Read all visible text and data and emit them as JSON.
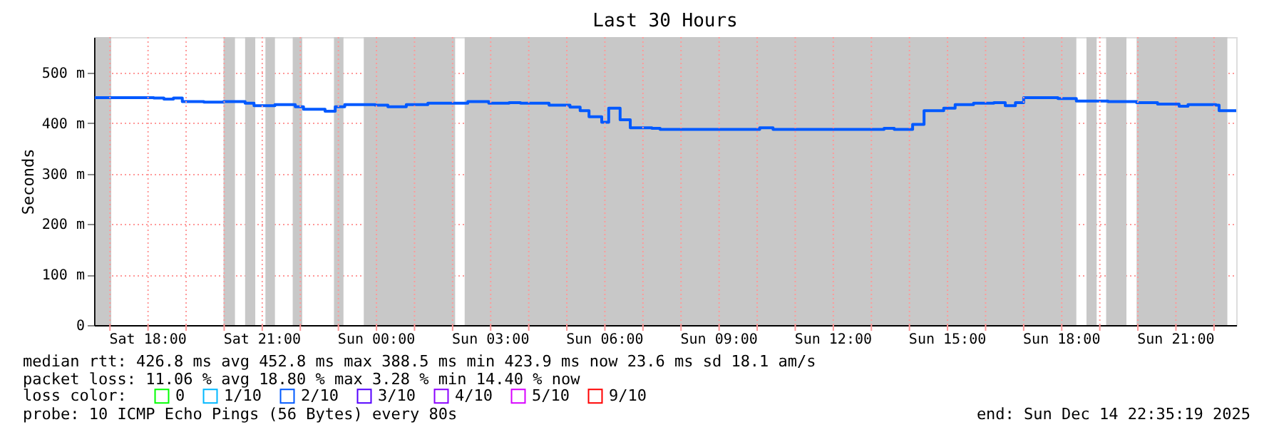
{
  "chart_data": {
    "type": "step",
    "title": "Last 30 Hours",
    "ylabel": "Seconds",
    "x": [
      "2025-12-13T16:36",
      "2025-12-13T18:09",
      "2025-12-13T18:25",
      "2025-12-13T18:40",
      "2025-12-13T18:54",
      "2025-12-13T19:28",
      "2025-12-13T19:59",
      "2025-12-13T20:33",
      "2025-12-13T20:47",
      "2025-12-13T21:20",
      "2025-12-13T21:52",
      "2025-12-13T22:05",
      "2025-12-13T22:39",
      "2025-12-13T22:55",
      "2025-12-13T23:10",
      "2025-12-13T23:58",
      "2025-12-14T00:18",
      "2025-12-14T00:47",
      "2025-12-14T01:21",
      "2025-12-14T02:24",
      "2025-12-14T02:57",
      "2025-12-14T03:29",
      "2025-12-14T03:47",
      "2025-12-14T04:32",
      "2025-12-14T05:05",
      "2025-12-14T05:21",
      "2025-12-14T05:35",
      "2025-12-14T05:55",
      "2025-12-14T06:06",
      "2025-12-14T06:24",
      "2025-12-14T06:40",
      "2025-12-14T07:14",
      "2025-12-14T07:27",
      "2025-12-14T10:04",
      "2025-12-14T10:25",
      "2025-12-14T13:20",
      "2025-12-14T13:36",
      "2025-12-14T14:05",
      "2025-12-14T14:23",
      "2025-12-14T14:54",
      "2025-12-14T15:12",
      "2025-12-14T15:41",
      "2025-12-14T16:13",
      "2025-12-14T16:31",
      "2025-12-14T16:47",
      "2025-12-14T17:00",
      "2025-12-14T17:54",
      "2025-12-14T18:23",
      "2025-12-14T19:13",
      "2025-12-14T19:58",
      "2025-12-14T20:31",
      "2025-12-14T21:05",
      "2025-12-14T21:19",
      "2025-12-14T22:03",
      "2025-12-14T22:08",
      "2025-12-14T22:19",
      "2025-12-14T22:35"
    ],
    "series": [
      {
        "name": "0",
        "color": "#00ff00",
        "values": [
          null,
          null,
          null,
          null,
          null,
          null,
          null,
          null,
          null,
          null,
          null,
          null,
          null,
          null,
          null,
          null,
          null,
          null,
          null,
          null,
          null,
          null,
          null,
          null,
          null,
          null,
          null,
          null,
          null,
          null,
          null,
          null,
          null,
          null,
          null,
          null,
          null,
          null,
          null,
          null,
          null,
          null,
          null,
          null,
          null,
          null,
          null,
          null,
          null,
          null,
          null,
          null,
          null,
          null,
          null,
          null,
          null
        ]
      },
      {
        "name": "1/10",
        "color": "#00b8ff",
        "values": [
          null,
          null,
          null,
          null,
          null,
          null,
          null,
          null,
          null,
          null,
          null,
          null,
          null,
          null,
          null,
          null,
          null,
          null,
          null,
          null,
          null,
          null,
          null,
          null,
          null,
          null,
          null,
          null,
          null,
          null,
          null,
          null,
          null,
          null,
          null,
          null,
          null,
          null,
          null,
          null,
          null,
          null,
          null,
          null,
          null,
          null,
          null,
          null,
          null,
          null,
          null,
          null,
          null,
          null,
          null,
          null,
          null
        ]
      },
      {
        "name": "2/10",
        "color": "#0059ff",
        "values": [
          451,
          450,
          448,
          450,
          443,
          442,
          443,
          440,
          435,
          437,
          433,
          428,
          424,
          433,
          437,
          436,
          433,
          437,
          440,
          443,
          440,
          441,
          440,
          436,
          432,
          425,
          413,
          402,
          430,
          407,
          391,
          390,
          388,
          391,
          388,
          390,
          388,
          398,
          425,
          430,
          437,
          440,
          441,
          435,
          441,
          451,
          449,
          444,
          443,
          441,
          438,
          434,
          437,
          436,
          425,
          425,
          425
        ]
      },
      {
        "name": "3/10",
        "color": "#5500ff",
        "values": [
          null,
          null,
          null,
          null,
          null,
          null,
          null,
          null,
          null,
          null,
          null,
          null,
          null,
          null,
          null,
          null,
          null,
          null,
          null,
          null,
          null,
          null,
          null,
          null,
          null,
          null,
          null,
          null,
          null,
          null,
          null,
          null,
          null,
          null,
          null,
          null,
          null,
          null,
          null,
          null,
          null,
          null,
          null,
          null,
          null,
          null,
          null,
          null,
          null,
          null,
          null,
          null,
          null,
          null,
          null,
          null,
          null
        ]
      },
      {
        "name": "4/10",
        "color": "#8a00ff",
        "values": [
          null,
          null,
          null,
          null,
          null,
          null,
          null,
          null,
          null,
          null,
          null,
          null,
          null,
          null,
          null,
          null,
          null,
          null,
          null,
          null,
          null,
          null,
          null,
          null,
          null,
          null,
          null,
          null,
          null,
          null,
          null,
          null,
          null,
          null,
          null,
          null,
          null,
          null,
          null,
          null,
          null,
          null,
          null,
          null,
          null,
          null,
          null,
          null,
          null,
          null,
          null,
          null,
          null,
          null,
          null,
          null,
          null
        ]
      },
      {
        "name": "5/10",
        "color": "#d800ff",
        "values": [
          null,
          null,
          null,
          null,
          null,
          null,
          null,
          null,
          null,
          null,
          null,
          null,
          null,
          null,
          null,
          null,
          null,
          null,
          null,
          null,
          null,
          null,
          null,
          null,
          null,
          null,
          null,
          null,
          null,
          null,
          null,
          null,
          null,
          null,
          null,
          null,
          null,
          null,
          null,
          null,
          null,
          null,
          null,
          null,
          null,
          null,
          null,
          null,
          null,
          null,
          null,
          null,
          null,
          null,
          null,
          null,
          null
        ]
      },
      {
        "name": "9/10",
        "color": "#ff0000",
        "values": [
          null,
          null,
          null,
          null,
          null,
          null,
          null,
          null,
          null,
          null,
          null,
          null,
          null,
          null,
          null,
          null,
          null,
          null,
          null,
          null,
          null,
          null,
          null,
          null,
          null,
          null,
          null,
          null,
          null,
          null,
          null,
          null,
          null,
          null,
          null,
          null,
          null,
          null,
          null,
          null,
          null,
          null,
          null,
          null,
          null,
          null,
          null,
          null,
          null,
          null,
          null,
          null,
          null,
          null,
          null,
          null,
          null
        ]
      }
    ],
    "legend": "bottom",
    "legend_title": "loss color:",
    "xlim": [
      "2025-12-13T16:35",
      "2025-12-14T22:35"
    ],
    "xticks": [
      {
        "value": "2025-12-13T17:00",
        "label": null
      },
      {
        "value": "2025-12-13T18:00",
        "label": "Sat 18:00"
      },
      {
        "value": "2025-12-13T19:00",
        "label": null
      },
      {
        "value": "2025-12-13T20:00",
        "label": null
      },
      {
        "value": "2025-12-13T21:00",
        "label": "Sat 21:00"
      },
      {
        "value": "2025-12-13T22:00",
        "label": null
      },
      {
        "value": "2025-12-13T23:00",
        "label": null
      },
      {
        "value": "2025-12-14T00:00",
        "label": "Sun 00:00"
      },
      {
        "value": "2025-12-14T01:00",
        "label": null
      },
      {
        "value": "2025-12-14T02:00",
        "label": null
      },
      {
        "value": "2025-12-14T03:00",
        "label": "Sun 03:00"
      },
      {
        "value": "2025-12-14T04:00",
        "label": null
      },
      {
        "value": "2025-12-14T05:00",
        "label": null
      },
      {
        "value": "2025-12-14T06:00",
        "label": "Sun 06:00"
      },
      {
        "value": "2025-12-14T07:00",
        "label": null
      },
      {
        "value": "2025-12-14T08:00",
        "label": null
      },
      {
        "value": "2025-12-14T09:00",
        "label": "Sun 09:00"
      },
      {
        "value": "2025-12-14T10:00",
        "label": null
      },
      {
        "value": "2025-12-14T11:00",
        "label": null
      },
      {
        "value": "2025-12-14T12:00",
        "label": "Sun 12:00"
      },
      {
        "value": "2025-12-14T13:00",
        "label": null
      },
      {
        "value": "2025-12-14T14:00",
        "label": null
      },
      {
        "value": "2025-12-14T15:00",
        "label": "Sun 15:00"
      },
      {
        "value": "2025-12-14T16:00",
        "label": null
      },
      {
        "value": "2025-12-14T17:00",
        "label": null
      },
      {
        "value": "2025-12-14T18:00",
        "label": "Sun 18:00"
      },
      {
        "value": "2025-12-14T19:00",
        "label": null
      },
      {
        "value": "2025-12-14T20:00",
        "label": null
      },
      {
        "value": "2025-12-14T21:00",
        "label": "Sun 21:00"
      },
      {
        "value": "2025-12-14T22:00",
        "label": null
      }
    ],
    "ylim": [
      0,
      571
    ],
    "yticks": [
      0,
      {
        "value": 100,
        "label": "100 m"
      },
      {
        "value": 200,
        "label": "200 m"
      },
      {
        "value": 300,
        "label": "300 m"
      },
      {
        "value": 400,
        "label": "400 m"
      },
      {
        "value": 500,
        "label": "500 m"
      }
    ],
    "grid": true,
    "line_style": "solid",
    "marker": "none",
    "bands": [
      {
        "axis": "x",
        "from": "2025-12-13T16:37",
        "to": "2025-12-13T17:02",
        "color": "#c8c8c8"
      },
      {
        "axis": "x",
        "from": "2025-12-13T19:59",
        "to": "2025-12-13T20:17",
        "color": "#c8c8c8"
      },
      {
        "axis": "x",
        "from": "2025-12-13T20:33",
        "to": "2025-12-13T20:49",
        "color": "#c8c8c8"
      },
      {
        "axis": "x",
        "from": "2025-12-13T21:05",
        "to": "2025-12-13T21:20",
        "color": "#c8c8c8"
      },
      {
        "axis": "x",
        "from": "2025-12-13T21:48",
        "to": "2025-12-13T22:03",
        "color": "#c8c8c8"
      },
      {
        "axis": "x",
        "from": "2025-12-13T22:53",
        "to": "2025-12-13T23:08",
        "color": "#c8c8c8"
      },
      {
        "axis": "x",
        "from": "2025-12-13T23:40",
        "to": "2025-12-14T02:04",
        "color": "#c8c8c8"
      },
      {
        "axis": "x",
        "from": "2025-12-14T02:19",
        "to": "2025-12-14T18:23",
        "color": "#c8c8c8"
      },
      {
        "axis": "x",
        "from": "2025-12-14T18:39",
        "to": "2025-12-14T18:55",
        "color": "#c8c8c8"
      },
      {
        "axis": "x",
        "from": "2025-12-14T19:10",
        "to": "2025-12-14T19:42",
        "color": "#c8c8c8"
      },
      {
        "axis": "x",
        "from": "2025-12-14T19:58",
        "to": "2025-12-14T22:21",
        "color": "#c8c8c8"
      }
    ],
    "annotations": [
      "median rtt:  426.8 ms avg  452.8 ms max  388.5 ms min  423.9 ms now  23.6 ms sd  18.1   am/s",
      "packet loss: 11.06 % avg  18.80 % max  3.28 % min  14.40 % now",
      "probe:       10 ICMP Echo Pings (56 Bytes) every 80s",
      "end: Sun Dec 14 22:35:19 2025"
    ]
  }
}
